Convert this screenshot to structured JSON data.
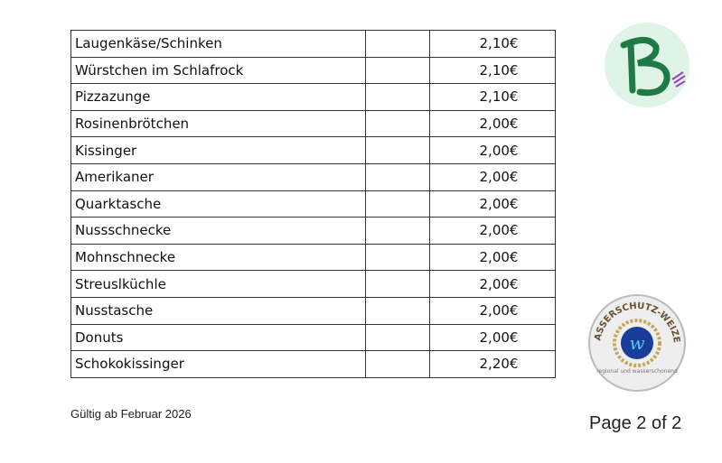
{
  "items": [
    {
      "name": "Laugenkäse/Schinken",
      "note": "",
      "price": "2,10€"
    },
    {
      "name": "Würstchen im Schlafrock",
      "note": "",
      "price": "2,10€"
    },
    {
      "name": "Pizzazunge",
      "note": "",
      "price": "2,10€"
    },
    {
      "name": "Rosinenbrötchen",
      "note": "",
      "price": "2,00€"
    },
    {
      "name": "Kissinger",
      "note": "",
      "price": "2,00€"
    },
    {
      "name": "Amerikaner",
      "note": "",
      "price": "2,00€"
    },
    {
      "name": "Quarktasche",
      "note": "",
      "price": "2,00€"
    },
    {
      "name": "Nussschnecke",
      "note": "",
      "price": "2,00€"
    },
    {
      "name": "Mohnschnecke",
      "note": "",
      "price": "2,00€"
    },
    {
      "name": "Streuslküchle",
      "note": "",
      "price": "2,00€"
    },
    {
      "name": "Nusstasche",
      "note": "",
      "price": "2,00€"
    },
    {
      "name": "Donuts",
      "note": "",
      "price": "2,00€"
    },
    {
      "name": "Schokokissinger",
      "note": "",
      "price": "2,20€"
    }
  ],
  "footer": {
    "valid_from": "Gültig ab Februar 2026",
    "page": "Page 2 of 2"
  },
  "logos": {
    "bakery_logo": "B",
    "seal_text": "WASSERSCHUTZ-WEIZEN",
    "seal_subtext": "regional und wasserschonend"
  },
  "colors": {
    "logo_green": "#1f7a45",
    "logo_bg": "#dff3e6",
    "seal_blue": "#1b3d9a",
    "seal_gold": "#c9a55c"
  }
}
